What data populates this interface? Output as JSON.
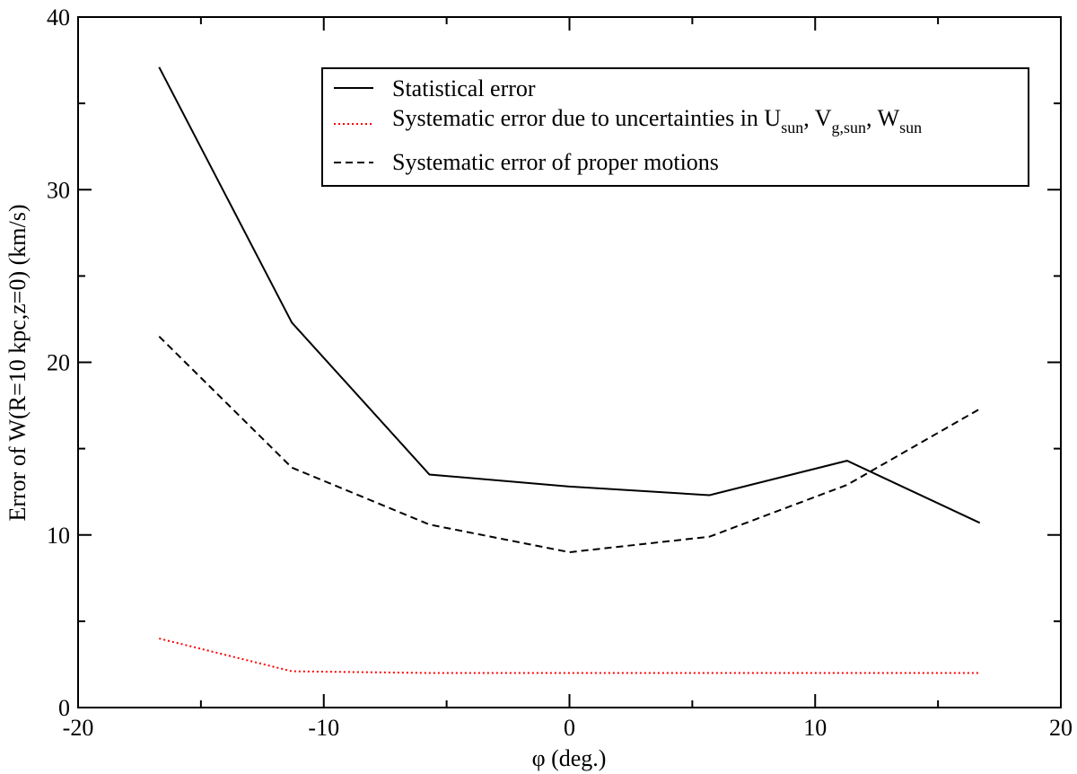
{
  "chart_data": {
    "type": "line",
    "xlabel": "φ (deg.)",
    "ylabel": "Error of W(R=10 kpc,z=0) (km/s)",
    "xlim": [
      -20,
      20
    ],
    "ylim": [
      0,
      40
    ],
    "x_major_ticks": [
      -20,
      -10,
      0,
      10,
      20
    ],
    "y_major_ticks": [
      0,
      10,
      20,
      30,
      40
    ],
    "x_tick_labels": [
      "-20",
      "-10",
      "0",
      "10",
      "20"
    ],
    "y_tick_labels": [
      "0",
      "10",
      "20",
      "30",
      "40"
    ],
    "grid": false,
    "legend_position": "top-right",
    "series": [
      {
        "name": "Statistical error",
        "color": "#000000",
        "style": "solid",
        "x": [
          -16.7,
          -11.3,
          -5.7,
          0,
          5.7,
          11.3,
          16.7
        ],
        "y": [
          37.1,
          22.3,
          13.5,
          12.8,
          12.3,
          14.3,
          10.7
        ]
      },
      {
        "name": "Systematic error due to uncertainties in U_sun, V_g,sun, W_sun",
        "color": "#ff0000",
        "style": "dotted",
        "x": [
          -16.7,
          -11.3,
          -5.7,
          0,
          5.7,
          11.3,
          16.7
        ],
        "y": [
          4.0,
          2.1,
          2.0,
          2.0,
          2.0,
          2.0,
          2.0
        ]
      },
      {
        "name": "Systematic error of proper motions",
        "color": "#000000",
        "style": "dashed",
        "x": [
          -16.7,
          -11.3,
          -5.7,
          0,
          5.7,
          11.3,
          16.7
        ],
        "y": [
          21.5,
          13.9,
          10.6,
          9.0,
          9.9,
          12.9,
          17.3
        ]
      }
    ],
    "legend": {
      "line1": "Statistical error",
      "line2_prefix": "Systematic error due to uncertainties in U",
      "line2_sub1": "sun",
      "line2_mid1": ", V",
      "line2_sub2": "g,sun",
      "line2_mid2": ", W",
      "line2_sub3": "sun",
      "line3": "Systematic error of proper motions"
    }
  }
}
